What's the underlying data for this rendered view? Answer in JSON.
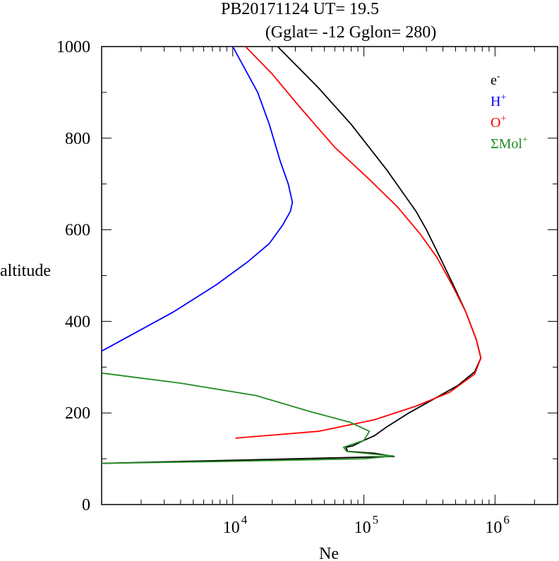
{
  "chart_data": {
    "type": "line",
    "title_line1": "PB20171124   UT=  19.5",
    "title_line2": "(Gglat= -12   Gglon=  280)",
    "xlabel": "Ne",
    "ylabel": "altitude",
    "xscale": "log",
    "xlim": [
      1000,
      3000000
    ],
    "ylim": [
      0,
      1000
    ],
    "x_tick_labels": [
      {
        "base": "10",
        "exp": "4",
        "value": 10000
      },
      {
        "base": "10",
        "exp": "5",
        "value": 100000
      },
      {
        "base": "10",
        "exp": "6",
        "value": 1000000
      }
    ],
    "y_tick_labels": [
      "0",
      "200",
      "400",
      "600",
      "800",
      "1000"
    ],
    "y_tick_values": [
      0,
      200,
      400,
      600,
      800,
      1000
    ],
    "legend_position": "top-right",
    "series": [
      {
        "name": "e",
        "sup": "-",
        "color": "#000000",
        "points": [
          [
            1000,
            90
          ],
          [
            170000,
            105
          ],
          [
            120000,
            112
          ],
          [
            75000,
            116
          ],
          [
            73000,
            125
          ],
          [
            82000,
            128
          ],
          [
            100000,
            140
          ],
          [
            120000,
            150
          ],
          [
            150000,
            170
          ],
          [
            220000,
            200
          ],
          [
            340000,
            230
          ],
          [
            520000,
            260
          ],
          [
            700000,
            290
          ],
          [
            780000,
            320
          ],
          [
            720000,
            360
          ],
          [
            600000,
            420
          ],
          [
            480000,
            480
          ],
          [
            380000,
            540
          ],
          [
            300000,
            600
          ],
          [
            250000,
            640
          ],
          [
            150000,
            730
          ],
          [
            80000,
            830
          ],
          [
            45000,
            910
          ],
          [
            22000,
            1000
          ]
        ]
      },
      {
        "name": "H",
        "sup": "+",
        "color": "#0000ff",
        "points": [
          [
            1000,
            335
          ],
          [
            3500,
            420
          ],
          [
            7500,
            480
          ],
          [
            13000,
            530
          ],
          [
            19000,
            570
          ],
          [
            24000,
            610
          ],
          [
            27500,
            640
          ],
          [
            28500,
            660
          ],
          [
            26500,
            700
          ],
          [
            23000,
            750
          ],
          [
            19000,
            830
          ],
          [
            15500,
            900
          ],
          [
            10000,
            1000
          ]
        ]
      },
      {
        "name": "O",
        "sup": "+",
        "color": "#ff0000",
        "points": [
          [
            10500,
            145
          ],
          [
            45000,
            160
          ],
          [
            120000,
            185
          ],
          [
            250000,
            215
          ],
          [
            450000,
            245
          ],
          [
            700000,
            285
          ],
          [
            780000,
            320
          ],
          [
            720000,
            360
          ],
          [
            600000,
            420
          ],
          [
            470000,
            480
          ],
          [
            360000,
            540
          ],
          [
            270000,
            590
          ],
          [
            180000,
            650
          ],
          [
            110000,
            710
          ],
          [
            60000,
            780
          ],
          [
            32000,
            870
          ],
          [
            20000,
            940
          ],
          [
            12500,
            1000
          ]
        ]
      },
      {
        "name": "ΣMol",
        "sup": "+",
        "color": "#228b22",
        "points": [
          [
            1000,
            287
          ],
          [
            4000,
            265
          ],
          [
            15000,
            238
          ],
          [
            40000,
            202
          ],
          [
            78000,
            180
          ],
          [
            110000,
            160
          ],
          [
            100000,
            140
          ],
          [
            70000,
            125
          ],
          [
            74000,
            116
          ],
          [
            120000,
            110
          ],
          [
            168000,
            106
          ],
          [
            100000,
            100
          ],
          [
            8000,
            94
          ],
          [
            1000,
            90
          ]
        ]
      }
    ]
  }
}
